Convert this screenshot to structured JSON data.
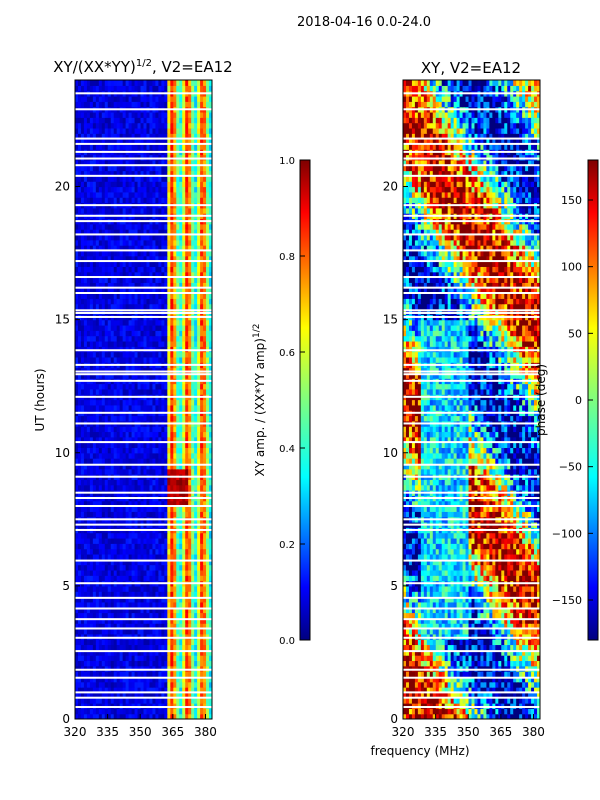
{
  "figure": {
    "suptitle": "2018-04-16 0.0-24.0",
    "xlabel": "frequency (MHz)"
  },
  "colors": {
    "jet": [
      "#00007f",
      "#0000ff",
      "#007fff",
      "#00ffff",
      "#7fff7f",
      "#ffff00",
      "#ff7f00",
      "#ff0000",
      "#7f0000"
    ],
    "gap": "#ffffff",
    "frame": "#000000"
  },
  "chart_data": [
    {
      "type": "heatmap",
      "title_text": "XY/(XX*YY)",
      "title_sup": "1/2",
      "title_suffix": ", V2=EA12",
      "xlabel": "",
      "ylabel": "UT (hours)",
      "xlim": [
        320,
        383
      ],
      "ylim": [
        0,
        24
      ],
      "xticks": [
        320,
        335,
        350,
        365,
        380
      ],
      "yticks": [
        0,
        5,
        10,
        15,
        20
      ],
      "colorbar": {
        "label_text": "XY amp. / (XX*YY amp)",
        "label_sup": "1/2",
        "range": [
          0.0,
          1.0
        ],
        "ticks": [
          "0.0",
          "0.2",
          "0.4",
          "0.6",
          "0.8",
          "1.0"
        ]
      },
      "description_bands": [
        {
          "freq_range": [
            320,
            363
          ],
          "value": 0.1
        },
        {
          "freq_range": [
            363,
            383
          ],
          "value": 0.55
        }
      ]
    },
    {
      "type": "heatmap",
      "title_text": "XY, V2=EA12",
      "xlabel": "frequency (MHz)",
      "ylabel": "",
      "xlim": [
        320,
        383
      ],
      "ylim": [
        0,
        24
      ],
      "xticks": [
        320,
        335,
        350,
        365,
        380
      ],
      "yticks": [
        0,
        5,
        10,
        15,
        20
      ],
      "colorbar": {
        "label_text": "phase (deg)",
        "range": [
          -180,
          180
        ],
        "ticks": [
          "150",
          "100",
          "50",
          "0",
          "−50",
          "−100",
          "−150"
        ],
        "tick_values": [
          150,
          100,
          50,
          0,
          -50,
          -100,
          -150
        ]
      }
    }
  ],
  "gaps_ut_hours": [
    0.45,
    0.8,
    1.0,
    1.55,
    1.85,
    2.55,
    3.05,
    3.4,
    3.75,
    4.15,
    4.55,
    5.1,
    5.95,
    7.1,
    7.3,
    7.5,
    8.0,
    8.3,
    8.5,
    9.1,
    9.55,
    10.4,
    11.1,
    11.5,
    12.1,
    12.7,
    12.95,
    13.05,
    13.3,
    13.85,
    15.1,
    15.25,
    15.35,
    16.0,
    16.2,
    16.6,
    17.2,
    17.6,
    18.2,
    18.7,
    18.9,
    19.3,
    20.4,
    20.8,
    21.05,
    21.3,
    21.6,
    21.8,
    22.9,
    23.5
  ]
}
